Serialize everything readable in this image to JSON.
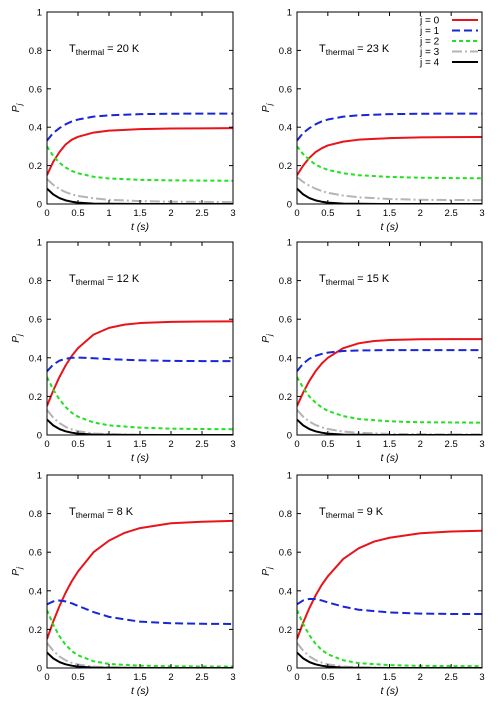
{
  "chart_data": [
    {
      "type": "line",
      "annotation": {
        "main": "T",
        "sub": "thermal",
        "rest": " = 20 K"
      },
      "xlabel": "t (s)",
      "ylabel": "P_j",
      "xlim": [
        0,
        3
      ],
      "ylim": [
        0,
        1
      ],
      "xticks": [
        "0",
        "0.5",
        "1",
        "1.5",
        "2",
        "2.5",
        "3"
      ],
      "yticks": [
        "0",
        "0.2",
        "0.4",
        "0.6",
        "0.8",
        "1"
      ],
      "legend": false,
      "series": [
        {
          "name": "j = 0",
          "x": [
            0,
            0.1,
            0.2,
            0.3,
            0.4,
            0.5,
            0.75,
            1,
            1.5,
            2,
            2.5,
            3
          ],
          "y": [
            0.15,
            0.22,
            0.27,
            0.31,
            0.335,
            0.35,
            0.372,
            0.382,
            0.39,
            0.393,
            0.394,
            0.395
          ]
        },
        {
          "name": "j = 1",
          "x": [
            0,
            0.1,
            0.2,
            0.3,
            0.4,
            0.5,
            0.75,
            1,
            1.5,
            2,
            2.5,
            3
          ],
          "y": [
            0.33,
            0.37,
            0.395,
            0.415,
            0.43,
            0.44,
            0.455,
            0.462,
            0.468,
            0.47,
            0.471,
            0.471
          ]
        },
        {
          "name": "j = 2",
          "x": [
            0,
            0.1,
            0.2,
            0.3,
            0.4,
            0.5,
            0.75,
            1,
            1.5,
            2,
            2.5,
            3
          ],
          "y": [
            0.3,
            0.25,
            0.215,
            0.19,
            0.172,
            0.16,
            0.142,
            0.133,
            0.126,
            0.123,
            0.122,
            0.121
          ]
        },
        {
          "name": "j = 3",
          "x": [
            0,
            0.1,
            0.2,
            0.3,
            0.4,
            0.5,
            0.75,
            1,
            1.5,
            2,
            2.5,
            3
          ],
          "y": [
            0.13,
            0.1,
            0.078,
            0.062,
            0.05,
            0.042,
            0.03,
            0.022,
            0.015,
            0.012,
            0.011,
            0.01
          ]
        },
        {
          "name": "j = 4",
          "x": [
            0,
            0.1,
            0.2,
            0.3,
            0.4,
            0.5,
            0.75,
            1,
            1.5,
            2,
            2.5,
            3
          ],
          "y": [
            0.08,
            0.05,
            0.031,
            0.019,
            0.012,
            0.007,
            0.002,
            0.001,
            0,
            0,
            0,
            0
          ]
        }
      ]
    },
    {
      "type": "line",
      "annotation": {
        "main": "T",
        "sub": "thermal",
        "rest": " = 23 K"
      },
      "xlabel": "t (s)",
      "ylabel": "P_j",
      "xlim": [
        0,
        3
      ],
      "ylim": [
        0,
        1
      ],
      "xticks": [
        "0",
        "0.5",
        "1",
        "1.5",
        "2",
        "2.5",
        "3"
      ],
      "yticks": [
        "0",
        "0.2",
        "0.4",
        "0.6",
        "0.8",
        "1"
      ],
      "legend": true,
      "series": [
        {
          "name": "j = 0",
          "x": [
            0,
            0.1,
            0.2,
            0.3,
            0.4,
            0.5,
            0.75,
            1,
            1.5,
            2,
            2.5,
            3
          ],
          "y": [
            0.15,
            0.2,
            0.24,
            0.27,
            0.29,
            0.305,
            0.325,
            0.335,
            0.343,
            0.347,
            0.348,
            0.349
          ]
        },
        {
          "name": "j = 1",
          "x": [
            0,
            0.1,
            0.2,
            0.3,
            0.4,
            0.5,
            0.75,
            1,
            1.5,
            2,
            2.5,
            3
          ],
          "y": [
            0.33,
            0.37,
            0.395,
            0.415,
            0.43,
            0.44,
            0.455,
            0.462,
            0.468,
            0.47,
            0.471,
            0.471
          ]
        },
        {
          "name": "j = 2",
          "x": [
            0,
            0.1,
            0.2,
            0.3,
            0.4,
            0.5,
            0.75,
            1,
            1.5,
            2,
            2.5,
            3
          ],
          "y": [
            0.3,
            0.26,
            0.23,
            0.205,
            0.19,
            0.178,
            0.16,
            0.15,
            0.141,
            0.137,
            0.135,
            0.134
          ]
        },
        {
          "name": "j = 3",
          "x": [
            0,
            0.1,
            0.2,
            0.3,
            0.4,
            0.5,
            0.75,
            1,
            1.5,
            2,
            2.5,
            3
          ],
          "y": [
            0.14,
            0.115,
            0.095,
            0.08,
            0.068,
            0.058,
            0.044,
            0.035,
            0.026,
            0.022,
            0.021,
            0.02
          ]
        },
        {
          "name": "j = 4",
          "x": [
            0,
            0.1,
            0.2,
            0.3,
            0.4,
            0.5,
            0.75,
            1,
            1.5,
            2,
            2.5,
            3
          ],
          "y": [
            0.08,
            0.05,
            0.031,
            0.019,
            0.012,
            0.007,
            0.002,
            0.001,
            0,
            0,
            0,
            0
          ]
        }
      ]
    },
    {
      "type": "line",
      "annotation": {
        "main": "T",
        "sub": "thermal",
        "rest": " = 12 K"
      },
      "xlabel": "t (s)",
      "ylabel": "P_j",
      "xlim": [
        0,
        3
      ],
      "ylim": [
        0,
        1
      ],
      "xticks": [
        "0",
        "0.5",
        "1",
        "1.5",
        "2",
        "2.5",
        "3"
      ],
      "yticks": [
        "0",
        "0.2",
        "0.4",
        "0.6",
        "0.8",
        "1"
      ],
      "legend": false,
      "series": [
        {
          "name": "j = 0",
          "x": [
            0,
            0.1,
            0.2,
            0.3,
            0.4,
            0.5,
            0.75,
            1,
            1.25,
            1.5,
            2,
            2.5,
            3
          ],
          "y": [
            0.15,
            0.23,
            0.3,
            0.36,
            0.41,
            0.45,
            0.52,
            0.555,
            0.572,
            0.58,
            0.586,
            0.588,
            0.589
          ]
        },
        {
          "name": "j = 1",
          "x": [
            0,
            0.1,
            0.2,
            0.3,
            0.4,
            0.5,
            0.75,
            1,
            1.5,
            2,
            2.5,
            3
          ],
          "y": [
            0.33,
            0.365,
            0.385,
            0.395,
            0.4,
            0.401,
            0.398,
            0.393,
            0.387,
            0.384,
            0.383,
            0.383
          ]
        },
        {
          "name": "j = 2",
          "x": [
            0,
            0.1,
            0.2,
            0.3,
            0.4,
            0.5,
            0.75,
            1,
            1.5,
            2,
            2.5,
            3
          ],
          "y": [
            0.3,
            0.235,
            0.185,
            0.145,
            0.115,
            0.095,
            0.065,
            0.05,
            0.038,
            0.033,
            0.031,
            0.03
          ]
        },
        {
          "name": "j = 3",
          "x": [
            0,
            0.1,
            0.2,
            0.3,
            0.4,
            0.5,
            0.75,
            1,
            1.5,
            2,
            2.5,
            3
          ],
          "y": [
            0.13,
            0.09,
            0.062,
            0.042,
            0.029,
            0.02,
            0.008,
            0.004,
            0.001,
            0,
            0,
            0
          ]
        },
        {
          "name": "j = 4",
          "x": [
            0,
            0.1,
            0.2,
            0.3,
            0.4,
            0.5,
            0.75,
            1,
            1.5,
            2,
            2.5,
            3
          ],
          "y": [
            0.08,
            0.05,
            0.031,
            0.019,
            0.012,
            0.007,
            0.002,
            0.001,
            0,
            0,
            0,
            0
          ]
        }
      ]
    },
    {
      "type": "line",
      "annotation": {
        "main": "T",
        "sub": "thermal",
        "rest": " = 15 K"
      },
      "xlabel": "t (s)",
      "ylabel": "P_j",
      "xlim": [
        0,
        3
      ],
      "ylim": [
        0,
        1
      ],
      "xticks": [
        "0",
        "0.5",
        "1",
        "1.5",
        "2",
        "2.5",
        "3"
      ],
      "yticks": [
        "0",
        "0.2",
        "0.4",
        "0.6",
        "0.8",
        "1"
      ],
      "legend": false,
      "series": [
        {
          "name": "j = 0",
          "x": [
            0,
            0.1,
            0.2,
            0.3,
            0.4,
            0.5,
            0.75,
            1,
            1.25,
            1.5,
            2,
            2.5,
            3
          ],
          "y": [
            0.15,
            0.22,
            0.28,
            0.33,
            0.37,
            0.4,
            0.45,
            0.475,
            0.487,
            0.492,
            0.496,
            0.497,
            0.497
          ]
        },
        {
          "name": "j = 1",
          "x": [
            0,
            0.1,
            0.2,
            0.3,
            0.4,
            0.5,
            0.75,
            1,
            1.5,
            2,
            2.5,
            3
          ],
          "y": [
            0.33,
            0.37,
            0.395,
            0.41,
            0.42,
            0.427,
            0.435,
            0.438,
            0.44,
            0.44,
            0.44,
            0.44
          ]
        },
        {
          "name": "j = 2",
          "x": [
            0,
            0.1,
            0.2,
            0.3,
            0.4,
            0.5,
            0.75,
            1,
            1.5,
            2,
            2.5,
            3
          ],
          "y": [
            0.3,
            0.245,
            0.2,
            0.168,
            0.143,
            0.125,
            0.098,
            0.083,
            0.071,
            0.066,
            0.065,
            0.064
          ]
        },
        {
          "name": "j = 3",
          "x": [
            0,
            0.1,
            0.2,
            0.3,
            0.4,
            0.5,
            0.75,
            1,
            1.5,
            2,
            2.5,
            3
          ],
          "y": [
            0.13,
            0.095,
            0.07,
            0.052,
            0.04,
            0.031,
            0.018,
            0.011,
            0.006,
            0.004,
            0.003,
            0.003
          ]
        },
        {
          "name": "j = 4",
          "x": [
            0,
            0.1,
            0.2,
            0.3,
            0.4,
            0.5,
            0.75,
            1,
            1.5,
            2,
            2.5,
            3
          ],
          "y": [
            0.08,
            0.05,
            0.031,
            0.019,
            0.012,
            0.007,
            0.002,
            0.001,
            0,
            0,
            0,
            0
          ]
        }
      ]
    },
    {
      "type": "line",
      "annotation": {
        "main": "T",
        "sub": "thermal",
        "rest": " = 8 K"
      },
      "xlabel": "t (s)",
      "ylabel": "P_j",
      "xlim": [
        0,
        3
      ],
      "ylim": [
        0,
        1
      ],
      "xticks": [
        "0",
        "0.5",
        "1",
        "1.5",
        "2",
        "2.5",
        "3"
      ],
      "yticks": [
        "0",
        "0.2",
        "0.4",
        "0.6",
        "0.8",
        "1"
      ],
      "legend": false,
      "series": [
        {
          "name": "j = 0",
          "x": [
            0,
            0.1,
            0.2,
            0.3,
            0.4,
            0.5,
            0.75,
            1,
            1.25,
            1.5,
            2,
            2.5,
            3
          ],
          "y": [
            0.15,
            0.24,
            0.32,
            0.39,
            0.45,
            0.5,
            0.6,
            0.66,
            0.7,
            0.725,
            0.75,
            0.758,
            0.762
          ]
        },
        {
          "name": "j = 1",
          "x": [
            0,
            0.1,
            0.2,
            0.3,
            0.4,
            0.5,
            0.75,
            1,
            1.5,
            2,
            2.5,
            3
          ],
          "y": [
            0.33,
            0.345,
            0.35,
            0.345,
            0.335,
            0.322,
            0.29,
            0.265,
            0.24,
            0.232,
            0.229,
            0.228
          ]
        },
        {
          "name": "j = 2",
          "x": [
            0,
            0.1,
            0.2,
            0.3,
            0.4,
            0.5,
            0.75,
            1,
            1.5,
            2,
            2.5,
            3
          ],
          "y": [
            0.3,
            0.225,
            0.165,
            0.12,
            0.088,
            0.066,
            0.035,
            0.021,
            0.012,
            0.009,
            0.008,
            0.008
          ]
        },
        {
          "name": "j = 3",
          "x": [
            0,
            0.1,
            0.2,
            0.3,
            0.4,
            0.5,
            0.75,
            1,
            1.5,
            2,
            2.5,
            3
          ],
          "y": [
            0.13,
            0.09,
            0.06,
            0.04,
            0.027,
            0.018,
            0.007,
            0.003,
            0.001,
            0,
            0,
            0
          ]
        },
        {
          "name": "j = 4",
          "x": [
            0,
            0.1,
            0.2,
            0.3,
            0.4,
            0.5,
            0.75,
            1,
            1.5,
            2,
            2.5,
            3
          ],
          "y": [
            0.08,
            0.05,
            0.031,
            0.019,
            0.012,
            0.007,
            0.002,
            0.001,
            0,
            0,
            0,
            0
          ]
        }
      ]
    },
    {
      "type": "line",
      "annotation": {
        "main": "T",
        "sub": "thermal",
        "rest": " = 9 K"
      },
      "xlabel": "t (s)",
      "ylabel": "P_j",
      "xlim": [
        0,
        3
      ],
      "ylim": [
        0,
        1
      ],
      "xticks": [
        "0",
        "0.5",
        "1",
        "1.5",
        "2",
        "2.5",
        "3"
      ],
      "yticks": [
        "0",
        "0.2",
        "0.4",
        "0.6",
        "0.8",
        "1"
      ],
      "legend": false,
      "series": [
        {
          "name": "j = 0",
          "x": [
            0,
            0.1,
            0.2,
            0.3,
            0.4,
            0.5,
            0.75,
            1,
            1.25,
            1.5,
            2,
            2.5,
            3
          ],
          "y": [
            0.15,
            0.235,
            0.31,
            0.375,
            0.43,
            0.475,
            0.565,
            0.62,
            0.655,
            0.675,
            0.698,
            0.707,
            0.711
          ]
        },
        {
          "name": "j = 1",
          "x": [
            0,
            0.1,
            0.2,
            0.3,
            0.4,
            0.5,
            0.75,
            1,
            1.5,
            2,
            2.5,
            3
          ],
          "y": [
            0.33,
            0.35,
            0.358,
            0.357,
            0.35,
            0.34,
            0.318,
            0.302,
            0.288,
            0.282,
            0.28,
            0.28
          ]
        },
        {
          "name": "j = 2",
          "x": [
            0,
            0.1,
            0.2,
            0.3,
            0.4,
            0.5,
            0.75,
            1,
            1.5,
            2,
            2.5,
            3
          ],
          "y": [
            0.3,
            0.228,
            0.17,
            0.126,
            0.094,
            0.071,
            0.04,
            0.025,
            0.015,
            0.011,
            0.01,
            0.01
          ]
        },
        {
          "name": "j = 3",
          "x": [
            0,
            0.1,
            0.2,
            0.3,
            0.4,
            0.5,
            0.75,
            1,
            1.5,
            2,
            2.5,
            3
          ],
          "y": [
            0.13,
            0.09,
            0.061,
            0.041,
            0.028,
            0.019,
            0.008,
            0.003,
            0.001,
            0,
            0,
            0
          ]
        },
        {
          "name": "j = 4",
          "x": [
            0,
            0.1,
            0.2,
            0.3,
            0.4,
            0.5,
            0.75,
            1,
            1.5,
            2,
            2.5,
            3
          ],
          "y": [
            0.08,
            0.05,
            0.031,
            0.019,
            0.012,
            0.007,
            0.002,
            0.001,
            0,
            0,
            0,
            0
          ]
        }
      ]
    }
  ],
  "series_styles": [
    {
      "color": "#e8141a",
      "dash": "none"
    },
    {
      "color": "#1726d6",
      "dash": "8,4"
    },
    {
      "color": "#22e022",
      "dash": "4,3"
    },
    {
      "color": "#b4b4b4",
      "dash": "10,3,2,3"
    },
    {
      "color": "#000000",
      "dash": "none"
    }
  ]
}
